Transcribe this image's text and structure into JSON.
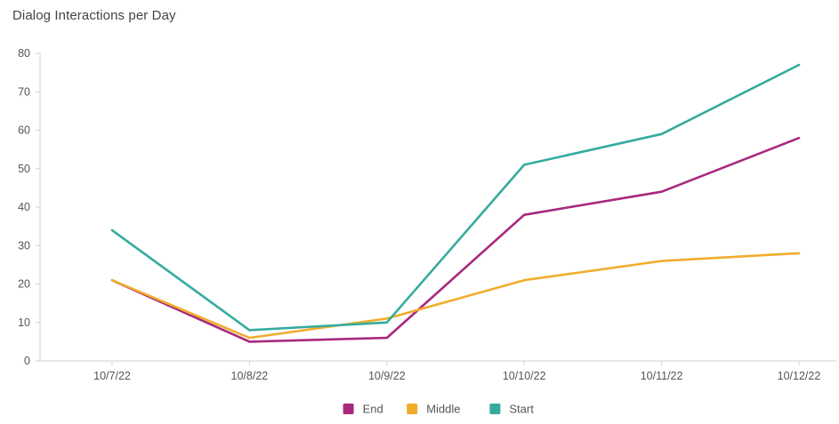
{
  "title": "Dialog Interactions per Day",
  "chart_data": {
    "type": "line",
    "title": "Dialog Interactions per Day",
    "xlabel": "",
    "ylabel": "",
    "categories": [
      "10/7/22",
      "10/8/22",
      "10/9/22",
      "10/10/22",
      "10/11/22",
      "10/12/22"
    ],
    "ylim": [
      0,
      80
    ],
    "yticks": [
      0,
      10,
      20,
      30,
      40,
      50,
      60,
      70,
      80
    ],
    "grid": false,
    "legend_position": "bottom-center",
    "series": [
      {
        "name": "End",
        "color": "#a8297e",
        "values": [
          21,
          5,
          6,
          38,
          44,
          58
        ]
      },
      {
        "name": "Middle",
        "color": "#f0ad2c",
        "values": [
          21,
          6,
          11,
          21,
          26,
          28
        ]
      },
      {
        "name": "Start",
        "color": "#35ab9e",
        "values": [
          34,
          8,
          10,
          51,
          59,
          77
        ]
      }
    ]
  }
}
